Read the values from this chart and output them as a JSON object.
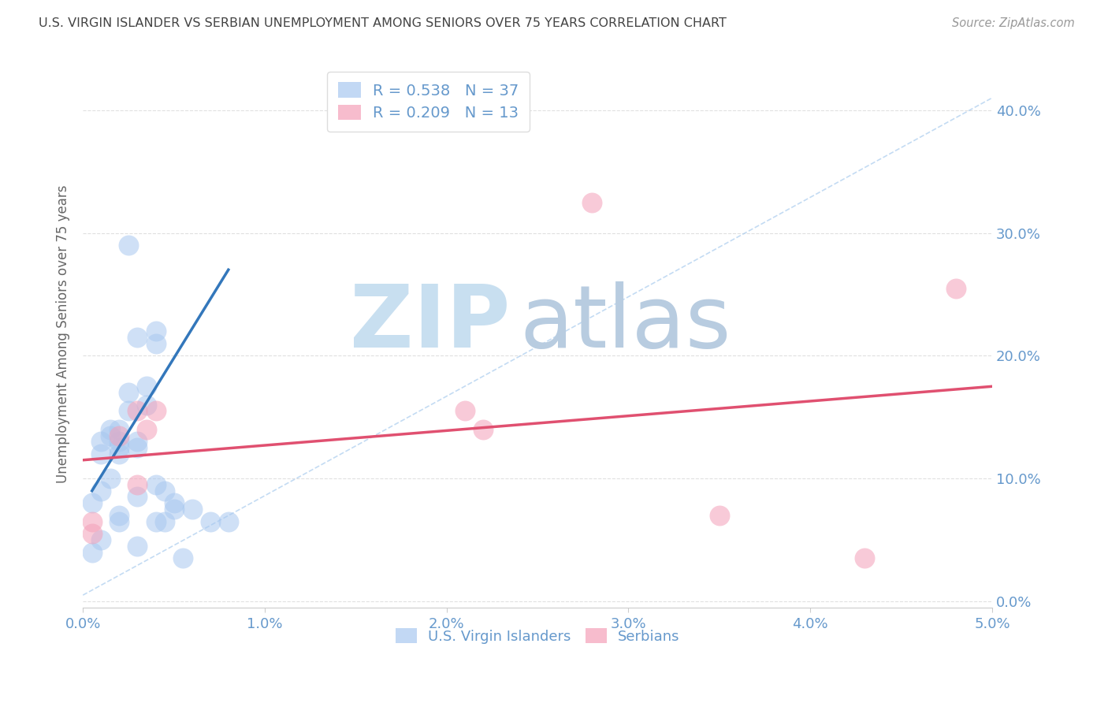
{
  "title": "U.S. VIRGIN ISLANDER VS SERBIAN UNEMPLOYMENT AMONG SENIORS OVER 75 YEARS CORRELATION CHART",
  "source": "Source: ZipAtlas.com",
  "ylabel": "Unemployment Among Seniors over 75 years",
  "xlim": [
    0.0,
    0.05
  ],
  "ylim": [
    -0.005,
    0.44
  ],
  "yticks": [
    0.0,
    0.1,
    0.2,
    0.3,
    0.4
  ],
  "xticks": [
    0.0,
    0.01,
    0.02,
    0.03,
    0.04,
    0.05
  ],
  "xtick_labels": [
    "0.0%",
    "1.0%",
    "2.0%",
    "3.0%",
    "4.0%",
    "5.0%"
  ],
  "ytick_labels": [
    "0.0%",
    "10.0%",
    "20.0%",
    "30.0%",
    "40.0%"
  ],
  "legend_entries": [
    {
      "label": "U.S. Virgin Islanders",
      "R": "0.538",
      "N": "37",
      "color": "#A8C8F0"
    },
    {
      "label": "Serbians",
      "R": "0.209",
      "N": "13",
      "color": "#F4A0B8"
    }
  ],
  "blue_scatter_x": [
    0.0005,
    0.0005,
    0.001,
    0.001,
    0.001,
    0.001,
    0.0015,
    0.0015,
    0.0015,
    0.002,
    0.002,
    0.002,
    0.002,
    0.002,
    0.002,
    0.0025,
    0.0025,
    0.003,
    0.003,
    0.003,
    0.003,
    0.003,
    0.0035,
    0.0035,
    0.004,
    0.004,
    0.004,
    0.004,
    0.0045,
    0.0045,
    0.005,
    0.005,
    0.0055,
    0.006,
    0.007,
    0.008,
    0.0025
  ],
  "blue_scatter_y": [
    0.08,
    0.04,
    0.13,
    0.12,
    0.09,
    0.05,
    0.14,
    0.135,
    0.1,
    0.13,
    0.125,
    0.14,
    0.12,
    0.07,
    0.065,
    0.17,
    0.155,
    0.215,
    0.13,
    0.125,
    0.085,
    0.045,
    0.175,
    0.16,
    0.22,
    0.21,
    0.095,
    0.065,
    0.09,
    0.065,
    0.08,
    0.075,
    0.035,
    0.075,
    0.065,
    0.065,
    0.29
  ],
  "pink_scatter_x": [
    0.0005,
    0.0005,
    0.002,
    0.003,
    0.003,
    0.0035,
    0.004,
    0.021,
    0.022,
    0.028,
    0.035,
    0.048,
    0.043
  ],
  "pink_scatter_y": [
    0.065,
    0.055,
    0.135,
    0.155,
    0.095,
    0.14,
    0.155,
    0.155,
    0.14,
    0.325,
    0.07,
    0.255,
    0.035
  ],
  "blue_line_x": [
    0.0005,
    0.008
  ],
  "blue_line_y": [
    0.09,
    0.27
  ],
  "pink_line_x": [
    0.0,
    0.05
  ],
  "pink_line_y": [
    0.115,
    0.175
  ],
  "diagonal_line_x": [
    0.0,
    0.05
  ],
  "diagonal_line_y": [
    0.005,
    0.41
  ],
  "watermark_zip": "ZIP",
  "watermark_atlas": "atlas",
  "watermark_zip_color": "#C8DFF0",
  "watermark_atlas_color": "#B8CCE0",
  "background_color": "#FFFFFF",
  "title_color": "#444444",
  "axis_label_color": "#666666",
  "tick_color": "#6699CC",
  "grid_color": "#E0E0E0",
  "blue_color": "#A8C8F0",
  "pink_color": "#F4A0B8",
  "blue_line_color": "#3377BB",
  "pink_line_color": "#E05070",
  "diagonal_color": "#AACCEE"
}
